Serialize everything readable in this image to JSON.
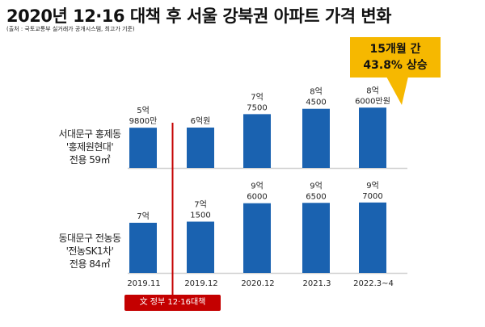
{
  "title": "2020년 12·16 대책 후 서울 강북권 아파트 가격 변화",
  "source": "(출처 : 국토교통부 실거래가 공개시스템, 최고가 기준)",
  "callout": {
    "line1": "15개월 간",
    "line2": "43.8% 상승"
  },
  "policy_label": "文 정부 12·16대책",
  "colors": {
    "bar": "#1a62b0",
    "policy": "#c40000",
    "callout": "#f6b800"
  },
  "chart_data": [
    {
      "type": "bar",
      "name_lines": [
        "서대문구 홍제동",
        "'홍제원현대'",
        "전용 59㎡"
      ],
      "categories": [
        "2019.11",
        "2019.12",
        "2020.12",
        "2021.3",
        "2022.3~4"
      ],
      "values": [
        5.98,
        6.0,
        7.75,
        8.45,
        8.6
      ],
      "unit": "억원",
      "labels": [
        [
          "5억",
          "9800만"
        ],
        [
          "6억원"
        ],
        [
          "7억",
          "7500"
        ],
        [
          "8억",
          "4500"
        ],
        [
          "8억",
          "6000만원"
        ]
      ]
    },
    {
      "type": "bar",
      "name_lines": [
        "동대문구 전농동",
        "'전농SK1차'",
        "전용 84㎡"
      ],
      "categories": [
        "2019.11",
        "2019.12",
        "2020.12",
        "2021.3",
        "2022.3~4"
      ],
      "values": [
        7.0,
        7.15,
        9.6,
        9.65,
        9.7
      ],
      "unit": "억원",
      "labels": [
        [
          "7억"
        ],
        [
          "7억",
          "1500"
        ],
        [
          "9억",
          "6000"
        ],
        [
          "9억",
          "6500"
        ],
        [
          "9억",
          "7000"
        ]
      ]
    }
  ]
}
